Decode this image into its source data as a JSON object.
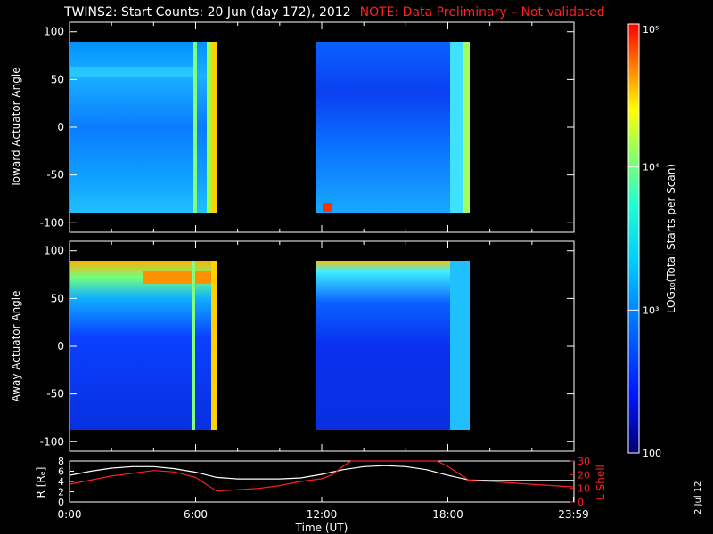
{
  "title": "TWINS2: Start Counts: 20 Jun (day 172), 2012",
  "note": "NOTE: Data Preliminary – Not validated",
  "date_stamp": "2 Jul 12",
  "colors": {
    "background": "#000000",
    "axes": "#ffffff",
    "note": "#ff2020",
    "lshell": "#ff2020",
    "r_line": "#ffffff"
  },
  "chart_data": [
    {
      "type": "heatmap",
      "ylabel": "Toward Actuator Angle",
      "ylim": [
        -110,
        110
      ],
      "yticks": [
        100,
        50,
        0,
        -50,
        -100
      ],
      "xlim_hours": [
        0,
        24
      ],
      "data_segments_hours": [
        [
          0.0,
          7.1
        ],
        [
          11.7,
          19.0
        ]
      ],
      "angle_range": [
        -88,
        90
      ],
      "features": [
        {
          "desc": "enhanced band",
          "hours": [
            0.0,
            7.1
          ],
          "angle": [
            55,
            65
          ],
          "level": 0.5
        },
        {
          "desc": "bright edge",
          "hours": [
            6.6,
            7.1
          ],
          "angle": [
            -88,
            90
          ],
          "level": 0.72
        },
        {
          "desc": "bright edge",
          "hours": [
            18.3,
            19.0
          ],
          "angle": [
            -88,
            90
          ],
          "level": 0.62
        },
        {
          "desc": "red spot",
          "hours": [
            11.8,
            12.2
          ],
          "angle": [
            -88,
            -80
          ],
          "level": 0.95
        }
      ]
    },
    {
      "type": "heatmap",
      "ylabel": "Away Actuator Angle",
      "ylim": [
        -110,
        110
      ],
      "yticks": [
        100,
        50,
        0,
        -50,
        -100
      ],
      "xlim_hours": [
        0,
        24
      ],
      "data_segments_hours": [
        [
          0.0,
          7.1
        ],
        [
          11.7,
          19.0
        ]
      ],
      "angle_range": [
        -88,
        90
      ],
      "features": [
        {
          "desc": "high counts near 70-90",
          "hours": [
            0.0,
            7.1
          ],
          "angle": [
            65,
            90
          ],
          "level": 0.88
        },
        {
          "desc": "bright edge",
          "hours": [
            6.6,
            7.1
          ],
          "angle": [
            -88,
            90
          ],
          "level": 0.66
        },
        {
          "desc": "high counts near top",
          "hours": [
            11.7,
            19.0
          ],
          "angle": [
            80,
            90
          ],
          "level": 0.75
        }
      ]
    },
    {
      "type": "line",
      "xlabel": "Time (UT)",
      "ylabel": "R [Rₑ]",
      "ylabel_right": "L Shell",
      "xlim_hours": [
        0,
        24
      ],
      "xtick_labels": [
        "0:00",
        "6:00",
        "12:00",
        "18:00",
        "23:59"
      ],
      "xtick_hours": [
        0,
        6,
        12,
        18,
        23.98
      ],
      "yticks_left": [
        0,
        2,
        4,
        6,
        8
      ],
      "ylim_left": [
        0,
        8
      ],
      "yticks_right": [
        0,
        10,
        20,
        30
      ],
      "ylim_right": [
        0,
        30
      ],
      "series": [
        {
          "axis": "left",
          "color": "#ffffff",
          "x": [
            0,
            1,
            2,
            3,
            4,
            5,
            6,
            7,
            8,
            9,
            10,
            11,
            12,
            13,
            14,
            15,
            16,
            17,
            18,
            19,
            20,
            21,
            22,
            23,
            24
          ],
          "y": [
            5.2,
            6.0,
            6.6,
            6.9,
            6.9,
            6.5,
            5.8,
            4.8,
            4.5,
            4.5,
            4.5,
            4.7,
            5.4,
            6.3,
            6.9,
            7.1,
            6.9,
            6.3,
            5.2,
            4.3,
            4.2,
            4.2,
            4.2,
            4.2,
            4.2
          ]
        },
        {
          "axis": "right",
          "color": "#ff2020",
          "x": [
            0,
            1,
            2,
            3,
            4,
            5,
            6,
            7,
            8,
            9,
            10,
            11,
            12,
            12.5,
            13,
            13.4,
            17.5,
            18,
            18.5,
            19,
            20,
            21,
            22,
            23,
            24
          ],
          "y": [
            13,
            16,
            19,
            21,
            23,
            22,
            18,
            8,
            9,
            10,
            12,
            15,
            17,
            20,
            26,
            30,
            30,
            26,
            21,
            16,
            15,
            14,
            13,
            12,
            11
          ]
        }
      ]
    },
    {
      "type": "heatmap",
      "colorbar": true,
      "label": "LOG₁₀(Total Starts per Scan)",
      "tick_labels": [
        "10⁵",
        "10⁴",
        "10³",
        "100"
      ],
      "tick_values": [
        100000,
        10000,
        1000,
        100
      ],
      "range": [
        100,
        100000
      ],
      "scale": "log"
    }
  ]
}
